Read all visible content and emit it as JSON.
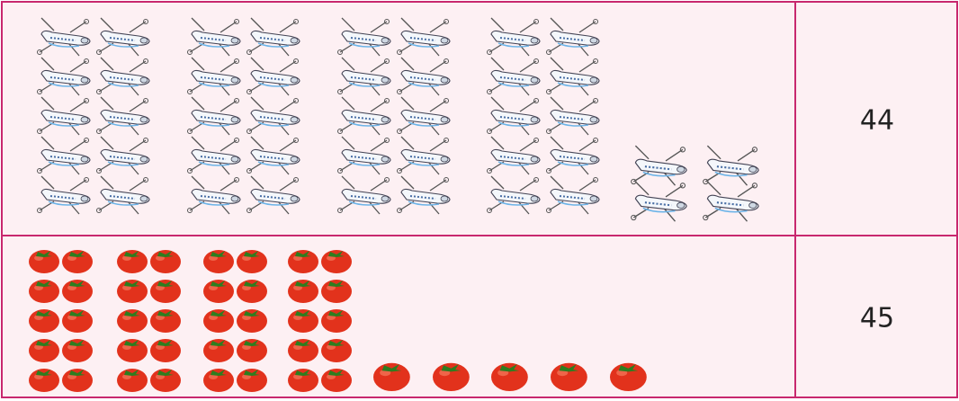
{
  "table": {
    "rows": [
      [
        44
      ],
      [
        45
      ]
    ]
  }
}
